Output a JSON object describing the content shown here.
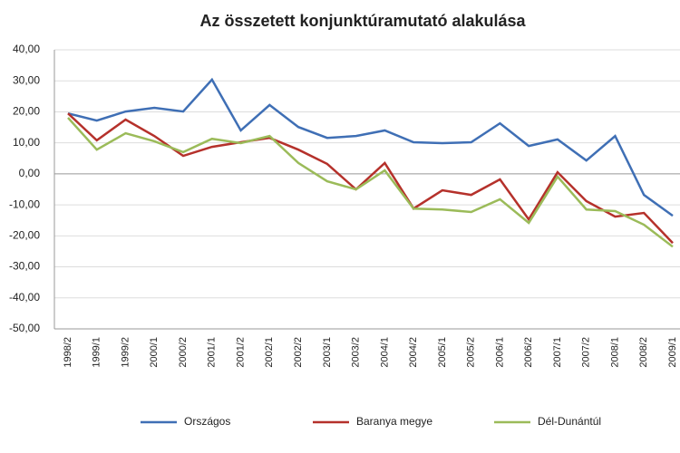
{
  "chart_data": {
    "type": "line",
    "title": "Az összetett konjunktúramutató alakulása",
    "categories": [
      "1998/2",
      "1999/1",
      "1999/2",
      "2000/1",
      "2000/2",
      "2001/1",
      "2001/2",
      "2002/1",
      "2002/2",
      "2003/1",
      "2003/2",
      "2004/1",
      "2004/2",
      "2005/1",
      "2005/2",
      "2006/1",
      "2006/2",
      "2007/1",
      "2007/2",
      "2008/1",
      "2008/2",
      "2009/1"
    ],
    "series": [
      {
        "name": "Országos",
        "color": "#3f6fb5",
        "values": [
          19.5,
          17.2,
          20.1,
          21.3,
          20.1,
          30.4,
          14.0,
          22.2,
          15.1,
          11.6,
          12.2,
          14.0,
          10.2,
          9.9,
          10.2,
          16.3,
          9.0,
          11.1,
          4.3,
          12.2,
          -6.8,
          -13.5
        ]
      },
      {
        "name": "Baranya megye",
        "color": "#b5312b",
        "values": [
          19.5,
          10.8,
          17.5,
          12.2,
          5.8,
          8.7,
          10.2,
          11.6,
          7.8,
          3.2,
          -5.0,
          3.5,
          -11.2,
          -5.3,
          -6.8,
          -1.8,
          -14.7,
          0.5,
          -8.8,
          -13.8,
          -12.6,
          -22.3
        ]
      },
      {
        "name": "Dél-Dunántúl",
        "color": "#9bbb59",
        "values": [
          18.1,
          7.8,
          13.1,
          10.5,
          7.0,
          11.3,
          9.9,
          12.2,
          3.5,
          -2.4,
          -5.0,
          1.1,
          -11.2,
          -11.5,
          -12.3,
          -8.2,
          -15.8,
          -0.9,
          -11.5,
          -12.0,
          -16.4,
          -23.5
        ]
      }
    ],
    "ylim": [
      -50,
      40
    ],
    "yticks": [
      {
        "value": 40,
        "label": "40,00"
      },
      {
        "value": 30,
        "label": "30,00"
      },
      {
        "value": 20,
        "label": "20,00"
      },
      {
        "value": 10,
        "label": "10,00"
      },
      {
        "value": 0,
        "label": "0,00"
      },
      {
        "value": -10,
        "label": "-10,00"
      },
      {
        "value": -20,
        "label": "-20,00"
      },
      {
        "value": -30,
        "label": "-30,00"
      },
      {
        "value": -40,
        "label": "-40,00"
      },
      {
        "value": -50,
        "label": "-50,00"
      }
    ],
    "grid": true
  }
}
